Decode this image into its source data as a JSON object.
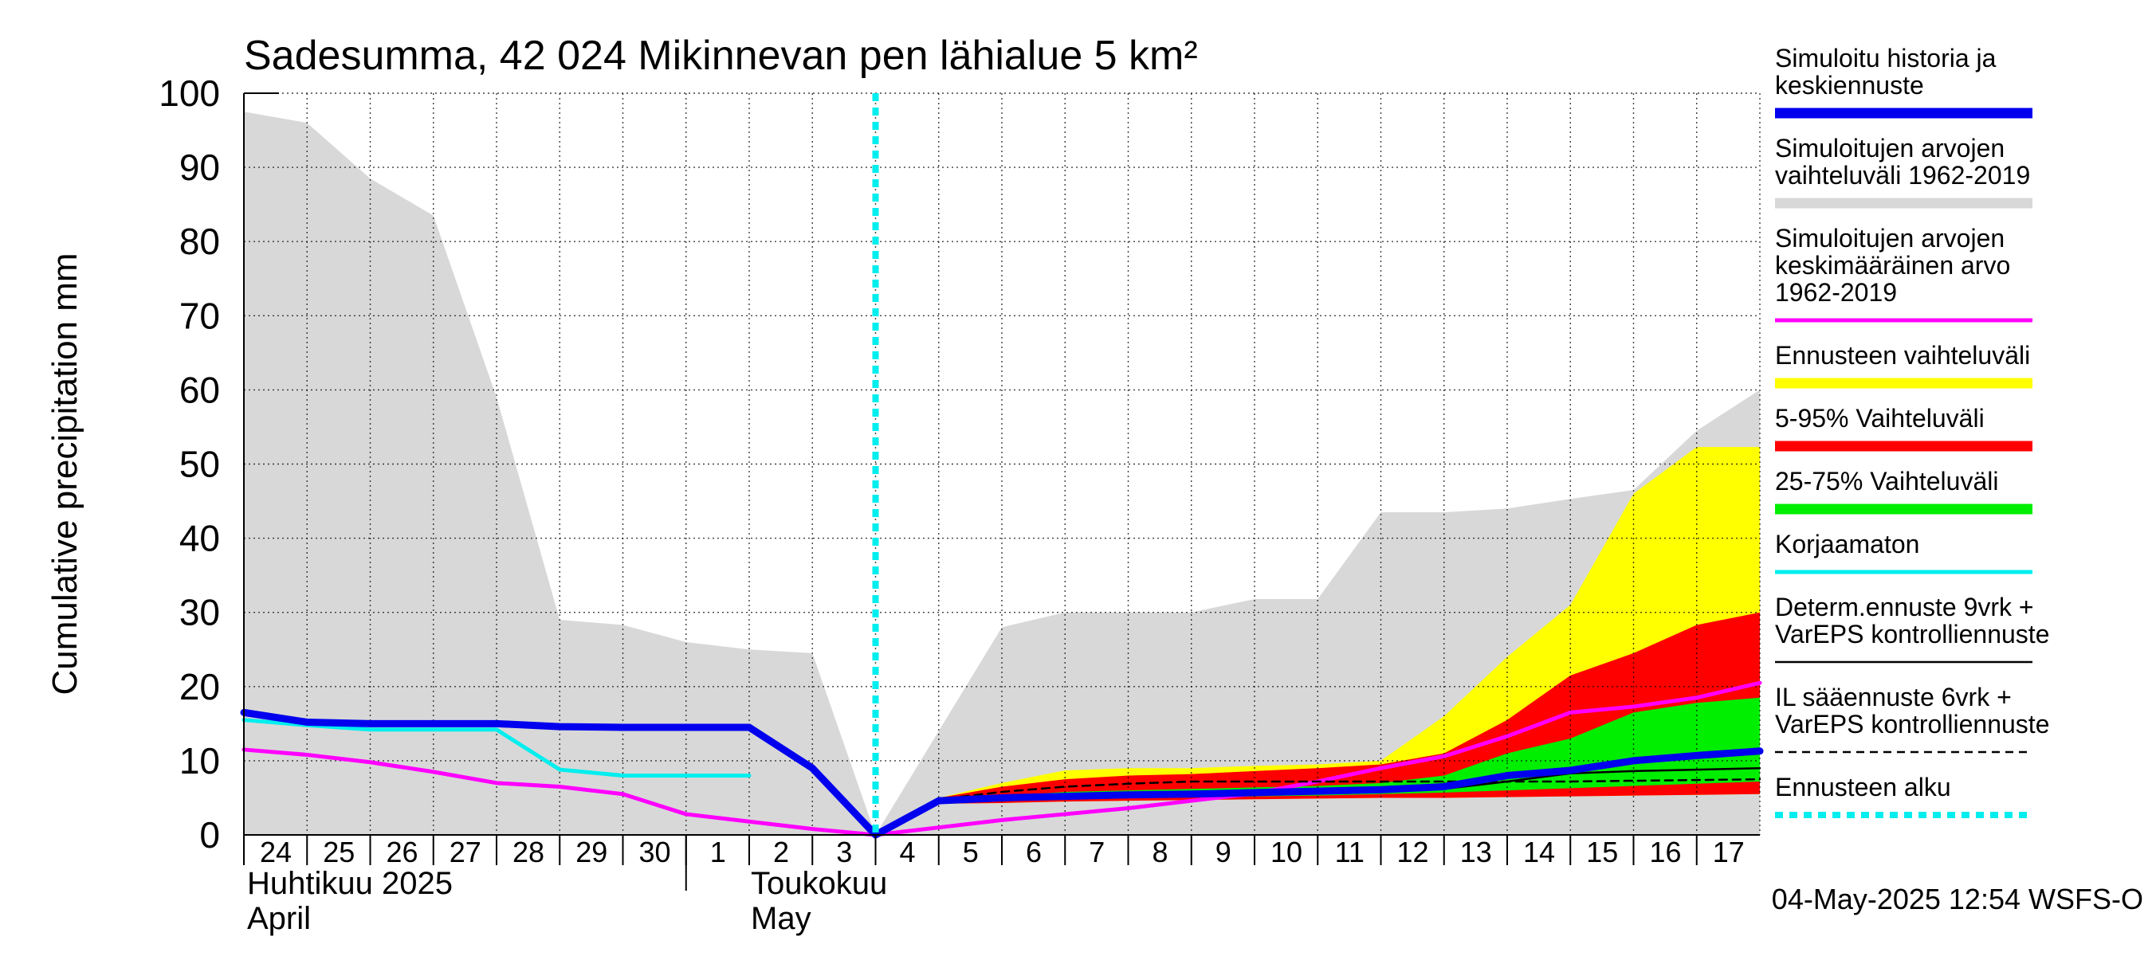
{
  "chart_data": {
    "type": "area",
    "title": "Sadesumma, 42 024 Mikinnevan pen lähialue 5 km²",
    "ylabel": "Cumulative precipitation   mm",
    "ylim": [
      0,
      100
    ],
    "y_ticks": [
      0,
      10,
      20,
      30,
      40,
      50,
      60,
      70,
      80,
      90,
      100
    ],
    "x_day_start": 24,
    "x_tick_labels": [
      "24",
      "25",
      "26",
      "27",
      "28",
      "29",
      "30",
      "1",
      "2",
      "3",
      "4",
      "5",
      "6",
      "7",
      "8",
      "9",
      "10",
      "11",
      "12",
      "13",
      "14",
      "15",
      "16",
      "17"
    ],
    "month_labels": [
      {
        "line1": "Huhtikuu  2025",
        "line2": "April"
      },
      {
        "line1": "Toukokuu",
        "line2": "May"
      }
    ],
    "forecast_start_x": 10,
    "timestamp": "04-May-2025 12:54 WSFS-O",
    "series": [
      {
        "name": "Simuloitujen arvojen vaihteluväli 1962-2019",
        "kind": "band",
        "color": "#d8d8d8",
        "x": [
          0,
          1,
          2,
          3,
          4,
          5,
          6,
          7,
          8,
          9,
          10,
          11,
          12,
          13,
          14,
          15,
          16,
          17,
          18,
          19,
          20,
          21,
          22,
          23,
          24
        ],
        "upper": [
          97.5,
          96,
          88.5,
          83.5,
          59,
          29,
          28.3,
          26,
          25,
          24.5,
          0,
          14,
          28,
          30,
          30,
          30,
          31.8,
          31.8,
          43.5,
          43.5,
          44,
          45.3,
          46.5,
          54.5,
          60
        ],
        "lower": [
          0,
          0,
          0,
          0,
          0,
          0,
          0,
          0,
          0,
          0,
          0,
          0,
          0,
          0,
          0,
          0,
          0,
          0,
          0,
          0,
          0,
          0,
          0,
          0,
          0
        ]
      },
      {
        "name": "Ennusteen vaihteluväli",
        "kind": "band",
        "color": "#ffff00",
        "x": [
          10,
          11,
          12,
          13,
          14,
          15,
          16,
          17,
          18,
          19,
          20,
          21,
          22,
          23,
          24
        ],
        "upper": [
          0,
          5,
          7,
          8.7,
          9,
          9,
          9.3,
          9.5,
          10,
          16,
          24,
          31,
          46,
          52.3,
          52.3
        ],
        "lower": [
          0,
          4.2,
          4.3,
          4.5,
          4.6,
          4.7,
          4.8,
          4.9,
          5,
          5,
          5.1,
          5.2,
          5.3,
          5.4,
          5.5
        ]
      },
      {
        "name": "5-95% Vaihteluväli",
        "kind": "band",
        "color": "#ff0000",
        "x": [
          10,
          11,
          12,
          13,
          14,
          15,
          16,
          17,
          18,
          19,
          20,
          21,
          22,
          23,
          24
        ],
        "upper": [
          0,
          5,
          6.5,
          7.5,
          8,
          8.2,
          8.6,
          9,
          9.5,
          11,
          15.5,
          21.5,
          24.5,
          28.3,
          30
        ],
        "lower": [
          0,
          4.2,
          4.3,
          4.5,
          4.6,
          4.7,
          4.8,
          4.9,
          5,
          5,
          5.1,
          5.2,
          5.3,
          5.4,
          5.5
        ]
      },
      {
        "name": "25-75% Vaihteluväli",
        "kind": "band",
        "color": "#00ee00",
        "x": [
          10,
          11,
          12,
          13,
          14,
          15,
          16,
          17,
          18,
          19,
          20,
          21,
          22,
          23,
          24
        ],
        "upper": [
          0,
          4.6,
          5.2,
          5.8,
          6,
          6.2,
          6.4,
          6.6,
          7,
          8,
          11,
          13,
          16.5,
          17.8,
          18.5
        ],
        "lower": [
          0,
          4.4,
          4.6,
          4.9,
          5,
          5.1,
          5.2,
          5.3,
          5.5,
          5.7,
          6,
          6.3,
          6.6,
          6.9,
          7.2
        ]
      },
      {
        "name": "Simuloitujen arvojen keskimääräinen arvo 1962-2019",
        "kind": "line",
        "color": "#ff00ff",
        "width": 5,
        "x": [
          0,
          1,
          2,
          3,
          4,
          5,
          6,
          7,
          8,
          9,
          10,
          11,
          12,
          13,
          14,
          15,
          16,
          17,
          18,
          19,
          20,
          21,
          22,
          23,
          24
        ],
        "y": [
          11.5,
          10.8,
          9.8,
          8.5,
          7,
          6.5,
          5.5,
          2.8,
          1.8,
          0.8,
          0,
          1,
          2,
          2.8,
          3.6,
          4.6,
          5.6,
          7.2,
          9,
          10.6,
          13.3,
          16.5,
          17.3,
          18.5,
          20.5
        ]
      },
      {
        "name": "Korjaamaton",
        "kind": "line",
        "color": "#00eeee",
        "width": 5,
        "x": [
          0,
          1,
          2,
          3,
          4,
          5,
          6,
          7,
          8
        ],
        "y": [
          15.5,
          14.8,
          14.2,
          14.2,
          14.2,
          8.8,
          8,
          8,
          8
        ]
      },
      {
        "name": "IL sääennuste 6vrk + VarEPS kontrolliennuste",
        "kind": "line",
        "color": "#000000",
        "width": 2.5,
        "dash": "10,7",
        "x": [
          10,
          11,
          12,
          13,
          14,
          15,
          16,
          17,
          18,
          19,
          20,
          21,
          22,
          23,
          24
        ],
        "y": [
          0,
          4.8,
          5.8,
          6.5,
          6.9,
          7.2,
          7.2,
          7.2,
          7.2,
          7.2,
          7.2,
          7.2,
          7.3,
          7.4,
          7.5
        ]
      },
      {
        "name": "Determ.ennuste 9vrk + VarEPS kontrolliennuste",
        "kind": "line",
        "color": "#000000",
        "width": 2.5,
        "x": [
          10,
          11,
          12,
          13,
          14,
          15,
          16,
          17,
          18,
          19,
          20,
          21,
          22,
          23,
          24
        ],
        "y": [
          0,
          4.6,
          5.2,
          5.5,
          5.6,
          5.7,
          5.8,
          5.9,
          6,
          6.2,
          7.2,
          8.3,
          8.6,
          8.8,
          9
        ]
      },
      {
        "name": "Simuloitu historia ja keskiennuste",
        "kind": "line",
        "color": "#0000ee",
        "width": 9,
        "x": [
          0,
          1,
          2,
          3,
          4,
          5,
          6,
          7,
          8,
          9,
          10,
          11,
          12,
          13,
          14,
          15,
          16,
          17,
          18,
          19,
          20,
          21,
          22,
          23,
          24
        ],
        "y": [
          16.5,
          15.2,
          15,
          15,
          15,
          14.6,
          14.5,
          14.5,
          14.5,
          9,
          0,
          4.6,
          5,
          5.2,
          5.4,
          5.5,
          5.7,
          5.9,
          6.1,
          6.5,
          8,
          8.7,
          10,
          10.7,
          11.3
        ]
      },
      {
        "name": "Ennusteen alku",
        "kind": "vline",
        "color": "#00eeee",
        "width": 8,
        "dash": "10,8",
        "x": 10
      }
    ]
  },
  "legend": [
    {
      "lines": [
        "Simuloitu historia ja",
        "keskiennuste"
      ],
      "color": "#0000ee",
      "style": "thick"
    },
    {
      "lines": [
        "Simuloitujen arvojen",
        "vaihteluväli 1962-2019"
      ],
      "color": "#d8d8d8",
      "style": "thick"
    },
    {
      "lines": [
        "Simuloitujen arvojen",
        "keskimääräinen arvo",
        "   1962-2019"
      ],
      "color": "#ff00ff",
      "style": "medium"
    },
    {
      "lines": [
        "Ennusteen vaihteluväli"
      ],
      "color": "#ffff00",
      "style": "thick"
    },
    {
      "lines": [
        "5-95% Vaihteluväli"
      ],
      "color": "#ff0000",
      "style": "thick"
    },
    {
      "lines": [
        "25-75% Vaihteluväli"
      ],
      "color": "#00ee00",
      "style": "thick"
    },
    {
      "lines": [
        "Korjaamaton"
      ],
      "color": "#00eeee",
      "style": "medium"
    },
    {
      "lines": [
        "Determ.ennuste 9vrk +",
        "VarEPS kontrolliennuste"
      ],
      "color": "#000000",
      "style": "thin"
    },
    {
      "lines": [
        "IL sääennuste 6vrk  +",
        "  VarEPS kontrolliennuste"
      ],
      "color": "#000000",
      "style": "dashed"
    },
    {
      "lines": [
        "Ennusteen alku"
      ],
      "color": "#00eeee",
      "style": "dotted"
    }
  ]
}
